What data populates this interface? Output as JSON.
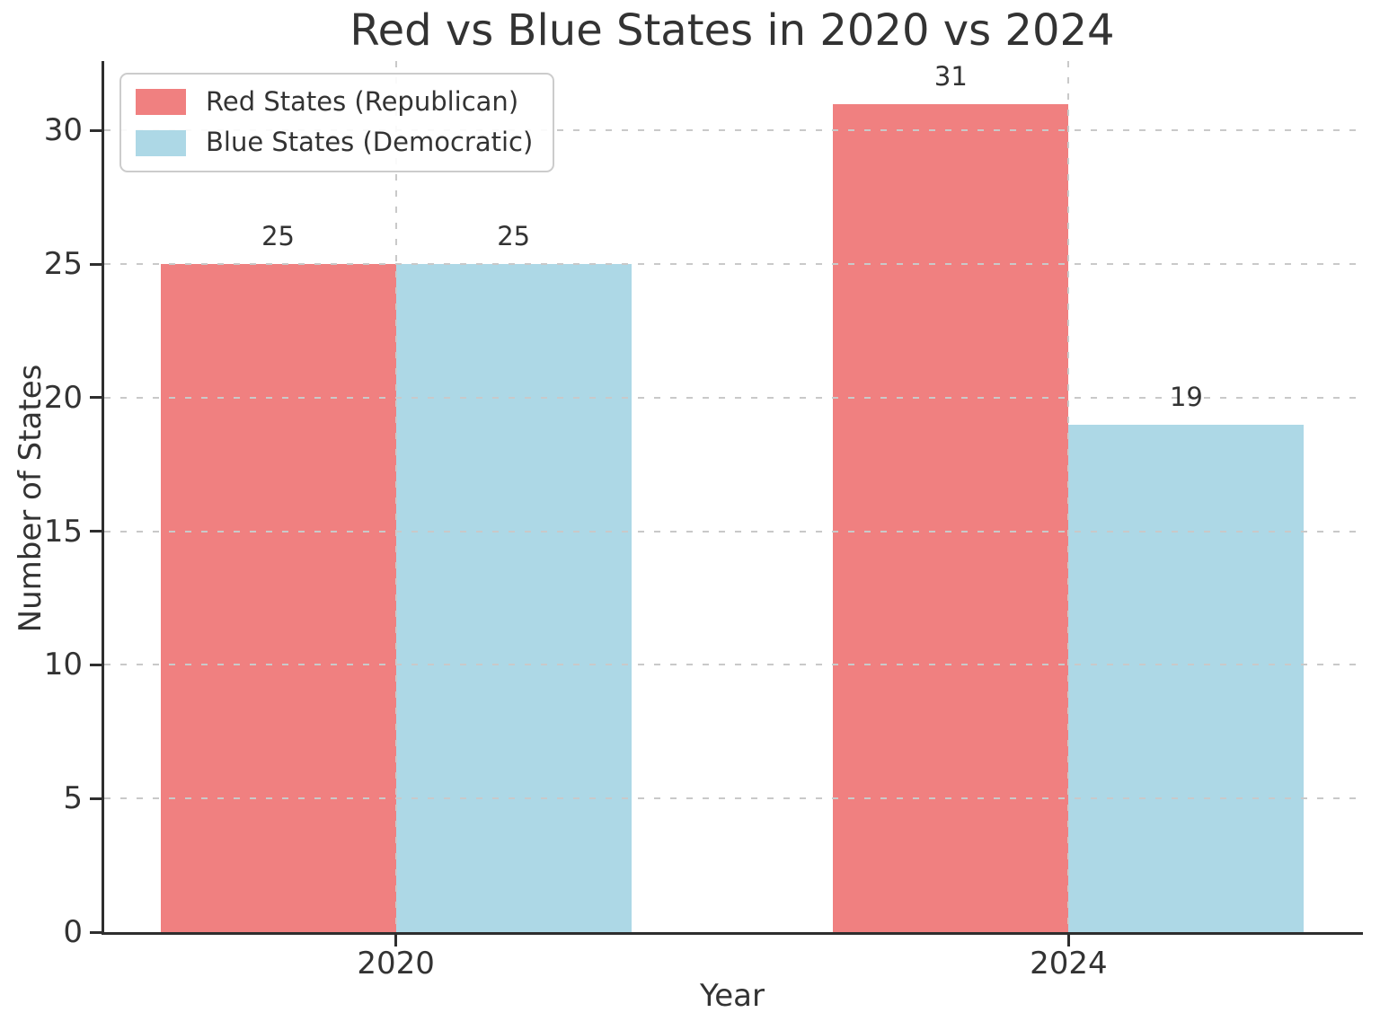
{
  "chart_data": {
    "type": "bar",
    "title": "Red vs Blue States in 2020 vs 2024",
    "xlabel": "Year",
    "ylabel": "Number of States",
    "categories": [
      "2020",
      "2024"
    ],
    "series": [
      {
        "name": "Red States (Republican)",
        "color": "#F08080",
        "values": [
          25,
          31
        ]
      },
      {
        "name": "Blue States (Democratic)",
        "color": "#ADD8E6",
        "values": [
          25,
          19
        ]
      }
    ],
    "bar_value_labels": true,
    "yticks": [
      0,
      5,
      10,
      15,
      20,
      25,
      30
    ],
    "ylim": [
      0,
      32.6
    ],
    "xlim": [
      -0.4335,
      1.4335
    ],
    "bar_width": 0.35,
    "grid": "dashed",
    "legend_position": "upper left"
  },
  "colors": {
    "grid": "#c9c9c9",
    "spine": "#2e2e2e",
    "text": "#333333",
    "legend_border": "#cccccc",
    "background": "#ffffff"
  }
}
